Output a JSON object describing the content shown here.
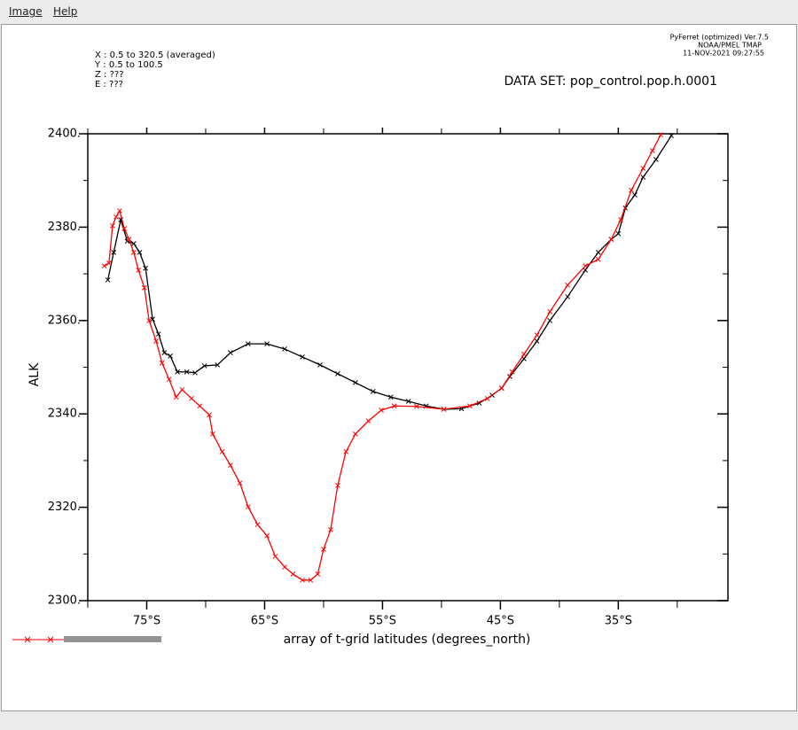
{
  "menu": [
    "Image",
    "Help"
  ],
  "header": {
    "info": [
      "X : 0.5 to 320.5 (averaged)",
      "Y : 0.5 to 100.5",
      "Z : ???",
      "E : ???"
    ],
    "version": [
      "PyFerret (optimized) Ver.7.5",
      "NOAA/PMEL TMAP",
      "11-NOV-2021 09:27:55"
    ],
    "dataset": "DATA SET: pop_control.pop.h.0001"
  },
  "chart_data": {
    "type": "line",
    "xlabel": "array of t-grid latitudes (degrees_north)",
    "ylabel": "ALK",
    "xlim": [
      -80,
      -25.7
    ],
    "ylim": [
      2300,
      2400
    ],
    "xticks": [
      {
        "value": -75,
        "label": "75°S"
      },
      {
        "value": -65,
        "label": "65°S"
      },
      {
        "value": -55,
        "label": "55°S"
      },
      {
        "value": -45,
        "label": "45°S"
      },
      {
        "value": -35,
        "label": "35°S"
      }
    ],
    "xminorticks": [
      -80,
      -70,
      -60,
      -50,
      -40,
      -30
    ],
    "yticks": [
      {
        "value": 2300,
        "label": "2300."
      },
      {
        "value": 2320,
        "label": "2320."
      },
      {
        "value": 2340,
        "label": "2340."
      },
      {
        "value": 2360,
        "label": "2360."
      },
      {
        "value": 2380,
        "label": "2380."
      },
      {
        "value": 2400,
        "label": "2400."
      }
    ],
    "yminorticks": [
      2310,
      2330,
      2350,
      2370,
      2390
    ],
    "series": [
      {
        "color": "#000000",
        "x": [
          -78.3,
          -77.8,
          -77.2,
          -76.65,
          -76.1,
          -75.6,
          -75.1,
          -74.5,
          -74.0,
          -73.5,
          -73.0,
          -72.4,
          -71.6,
          -70.9,
          -70.1,
          -69.0,
          -67.9,
          -66.4,
          -64.8,
          -63.3,
          -61.8,
          -60.3,
          -58.8,
          -57.3,
          -55.8,
          -54.3,
          -52.8,
          -51.3,
          -49.8,
          -48.3,
          -46.8,
          -45.7,
          -44.9,
          -44.2,
          -43.0,
          -41.9,
          -40.8,
          -39.3,
          -37.8,
          -36.7,
          -35.6,
          -35.0,
          -34.4,
          -33.6,
          -32.9,
          -31.8,
          -30.5
        ],
        "values": [
          2368.7,
          2374.6,
          2381.6,
          2377,
          2376.5,
          2374.6,
          2371.2,
          2360.3,
          2357.1,
          2353.1,
          2352.4,
          2349,
          2349,
          2348.8,
          2350.3,
          2350.5,
          2353.1,
          2355,
          2355,
          2353.9,
          2352.2,
          2350.5,
          2348.6,
          2346.7,
          2344.8,
          2343.6,
          2342.7,
          2341.7,
          2341,
          2341.1,
          2342.3,
          2344,
          2345.5,
          2348,
          2351.8,
          2355.6,
          2360,
          2365.1,
          2370.8,
          2374.6,
          2377.4,
          2378.6,
          2384.1,
          2386.9,
          2390.7,
          2394.5,
          2399.6
        ]
      },
      {
        "color": "#ff0000",
        "x": [
          -78.6,
          -78.2,
          -77.9,
          -77.6,
          -77.3,
          -76.9,
          -76.5,
          -76.1,
          -75.7,
          -75.2,
          -74.8,
          -74.2,
          -73.7,
          -73.1,
          -72.5,
          -72.0,
          -71.2,
          -70.5,
          -69.7,
          -69.4,
          -68.6,
          -67.9,
          -67.1,
          -66.4,
          -65.6,
          -64.8,
          -64.1,
          -63.3,
          -62.6,
          -61.8,
          -61.1,
          -60.5,
          -60.0,
          -59.4,
          -58.8,
          -58.1,
          -57.3,
          -56.2,
          -55.1,
          -54.0,
          -52.1,
          -49.8,
          -47.6,
          -46.1,
          -44.9,
          -44.0,
          -43.0,
          -41.9,
          -40.8,
          -39.3,
          -37.8,
          -36.7,
          -35.6,
          -34.8,
          -33.9,
          -32.9,
          -32.1,
          -31.4
        ],
        "values": [
          2371.7,
          2372.3,
          2380.3,
          2382.2,
          2383.5,
          2379.7,
          2377.4,
          2374.6,
          2370.8,
          2367,
          2360,
          2355.6,
          2350.9,
          2347.4,
          2343.6,
          2345.2,
          2343.3,
          2341.7,
          2339.8,
          2335.7,
          2331.9,
          2329,
          2325.2,
          2320.1,
          2316.3,
          2313.9,
          2309.5,
          2307.2,
          2305.7,
          2304.4,
          2304.4,
          2305.7,
          2311,
          2315.2,
          2324.7,
          2331.9,
          2335.7,
          2338.5,
          2340.8,
          2341.7,
          2341.6,
          2341,
          2341.7,
          2343.3,
          2345.5,
          2349,
          2352.8,
          2356.9,
          2361.9,
          2367.6,
          2371.7,
          2373.1,
          2377.4,
          2381.6,
          2387.9,
          2392.6,
          2396.4,
          2399.8
        ]
      }
    ]
  }
}
